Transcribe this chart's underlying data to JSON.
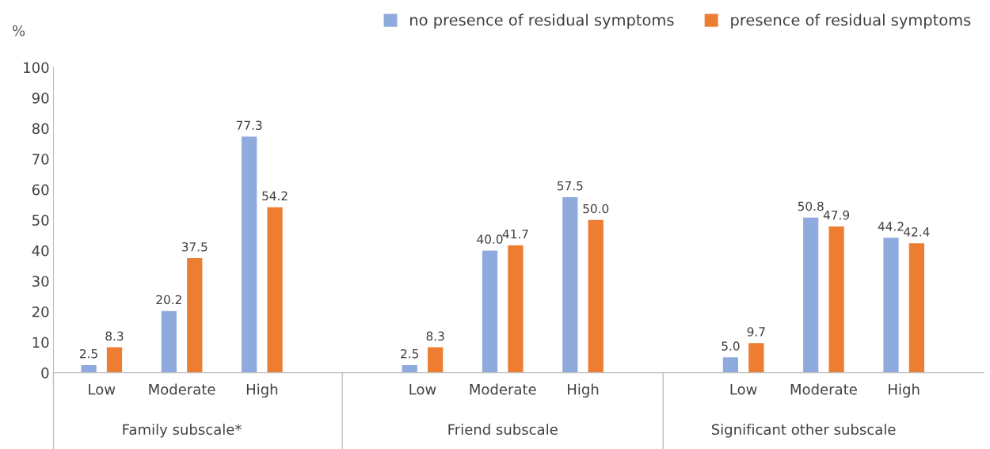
{
  "chart_data": {
    "type": "bar",
    "ylabel": "%",
    "categories": [
      "Low",
      "Moderate",
      "High",
      null,
      "Low",
      "Moderate",
      "High",
      null,
      "Low",
      "Moderate",
      "High"
    ],
    "series": [
      {
        "name": "no presence of residual symptoms",
        "color": "#8faadc",
        "values": [
          2.5,
          20.2,
          77.3,
          null,
          2.5,
          40.0,
          57.5,
          null,
          5.0,
          50.8,
          44.2
        ],
        "value_labels": [
          "2.5",
          "20.2",
          "77.3",
          null,
          "2.5",
          "40.0",
          "57.5",
          null,
          "5.0",
          "50.8",
          "44.2"
        ]
      },
      {
        "name": "presence of residual symptoms",
        "color": "#ed7d31",
        "values": [
          8.3,
          37.5,
          54.2,
          null,
          8.3,
          41.7,
          50.0,
          null,
          9.7,
          47.9,
          42.4
        ],
        "value_labels": [
          "8.3",
          "37.5",
          "54.2",
          null,
          "8.3",
          "41.7",
          "50.0",
          null,
          "9.7",
          "47.9",
          "42.4"
        ]
      }
    ],
    "annotations": [
      "Family subscale*",
      "Friend subscale",
      "Significant other subscale"
    ],
    "ylim": [
      0,
      100
    ],
    "yticks": [
      0,
      10,
      20,
      30,
      40,
      50,
      60,
      70,
      80,
      90,
      100
    ],
    "grid": false,
    "legend": "top right"
  }
}
